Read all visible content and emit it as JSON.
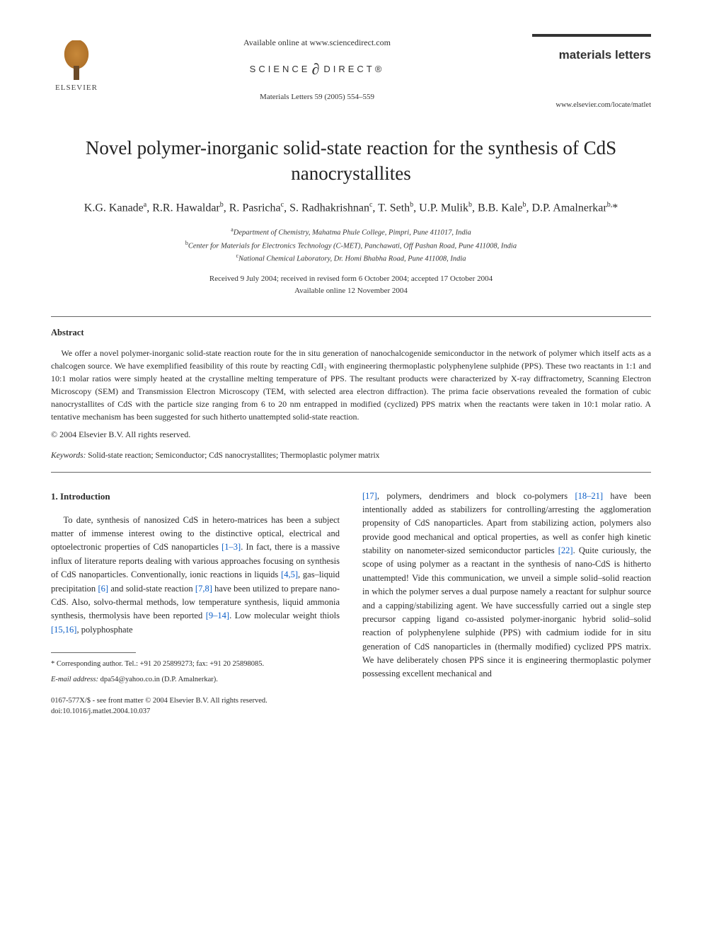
{
  "header": {
    "publisher_name": "ELSEVIER",
    "available_online": "Available online at www.sciencedirect.com",
    "science_direct_left": "SCIENCE",
    "science_direct_right": "DIRECT®",
    "citation": "Materials Letters 59 (2005) 554–559",
    "journal_brand": "materials letters",
    "journal_url": "www.elsevier.com/locate/matlet"
  },
  "title": "Novel polymer-inorganic solid-state reaction for the synthesis of CdS nanocrystallites",
  "authors_html": "K.G. Kanade<sup>a</sup>, R.R. Hawaldar<sup>b</sup>, R. Pasricha<sup>c</sup>, S. Radhakrishnan<sup>c</sup>, T. Seth<sup>b</sup>, U.P. Mulik<sup>b</sup>, B.B. Kale<sup>b</sup>, D.P. Amalnerkar<sup>b,</sup>*",
  "affiliations": {
    "a": "Department of Chemistry, Mahatma Phule College, Pimpri, Pune 411017, India",
    "b": "Center for Materials for Electronics Technology (C-MET), Panchawati, Off Pashan Road, Pune 411008, India",
    "c": "National Chemical Laboratory, Dr. Homi Bhabha Road, Pune 411008, India"
  },
  "dates": {
    "received": "Received 9 July 2004; received in revised form 6 October 2004; accepted 17 October 2004",
    "online": "Available online 12 November 2004"
  },
  "abstract": {
    "heading": "Abstract",
    "body": "We offer a novel polymer-inorganic solid-state reaction route for the in situ generation of nanochalcogenide semiconductor in the network of polymer which itself acts as a chalcogen source. We have exemplified feasibility of this route by reacting CdI₂ with engineering thermoplastic polyphenylene sulphide (PPS). These two reactants in 1:1 and 10:1 molar ratios were simply heated at the crystalline melting temperature of PPS. The resultant products were characterized by X-ray diffractometry, Scanning Electron Microscopy (SEM) and Transmission Electron Microscopy (TEM, with selected area electron diffraction). The prima facie observations revealed the formation of cubic nanocrystallites of CdS with the particle size ranging from 6 to 20 nm entrapped in modified (cyclized) PPS matrix when the reactants were taken in 10:1 molar ratio. A tentative mechanism has been suggested for such hitherto unattempted solid-state reaction.",
    "copyright": "© 2004 Elsevier B.V. All rights reserved."
  },
  "keywords": {
    "label": "Keywords:",
    "text": " Solid-state reaction; Semiconductor; CdS nanocrystallites; Thermoplastic polymer matrix"
  },
  "body": {
    "section_number": "1.",
    "section_title": "Introduction",
    "col1_pre": "To date, synthesis of nanosized CdS in hetero-matrices has been a subject matter of immense interest owing to the distinctive optical, electrical and optoelectronic properties of CdS nanoparticles ",
    "ref_1_3": "[1–3]",
    "col1_mid1": ". In fact, there is a massive influx of literature reports dealing with various approaches focusing on synthesis of CdS nanoparticles. Conventionally, ionic reactions in liquids ",
    "ref_4_5": "[4,5]",
    "col1_mid2": ", gas–liquid precipitation ",
    "ref_6": "[6]",
    "col1_mid3": " and solid-state reaction ",
    "ref_7_8": "[7,8]",
    "col1_mid4": " have been utilized to prepare nano-CdS. Also, solvo-thermal methods, low temperature synthesis, liquid ammonia synthesis, thermolysis have been reported ",
    "ref_9_14": "[9–14]",
    "col1_mid5": ". Low molecular weight thiols ",
    "ref_15_16": "[15,16]",
    "col1_end": ", polyphosphate",
    "ref_17": "[17]",
    "col2_mid1": ", polymers, dendrimers and block co-polymers ",
    "ref_18_21": "[18–21]",
    "col2_mid2": " have been intentionally added as stabilizers for controlling/arresting the agglomeration propensity of CdS nanoparticles. Apart from stabilizing action, polymers also provide good mechanical and optical properties, as well as confer high kinetic stability on nanometer-sized semiconductor particles ",
    "ref_22": "[22]",
    "col2_end": ". Quite curiously, the scope of using polymer as a reactant in the synthesis of nano-CdS is hitherto unattempted! Vide this communication, we unveil a simple solid–solid reaction in which the polymer serves a dual purpose namely a reactant for sulphur source and a capping/stabilizing agent. We have successfully carried out a single step precursor capping ligand co-assisted polymer-inorganic hybrid solid–solid reaction of polyphenylene sulphide (PPS) with cadmium iodide for in situ generation of CdS nanoparticles in (thermally modified) cyclized PPS matrix. We have deliberately chosen PPS since it is engineering thermoplastic polymer possessing excellent mechanical and"
  },
  "footnotes": {
    "corresponding": "* Corresponding author. Tel.: +91 20 25899273; fax: +91 20 25898085.",
    "email_label": "E-mail address:",
    "email_value": " dpa54@yahoo.co.in (D.P. Amalnerkar)."
  },
  "footer": {
    "line1": "0167-577X/$ - see front matter © 2004 Elsevier B.V. All rights reserved.",
    "line2": "doi:10.1016/j.matlet.2004.10.037"
  },
  "colors": {
    "text": "#2a2a2a",
    "link": "#0b5ec7",
    "rule": "#666666",
    "logo_orange": "#c8893a"
  },
  "typography": {
    "title_fontsize": 27,
    "authors_fontsize": 16,
    "body_fontsize": 12.5,
    "abstract_fontsize": 12,
    "footnote_fontsize": 10.5
  }
}
